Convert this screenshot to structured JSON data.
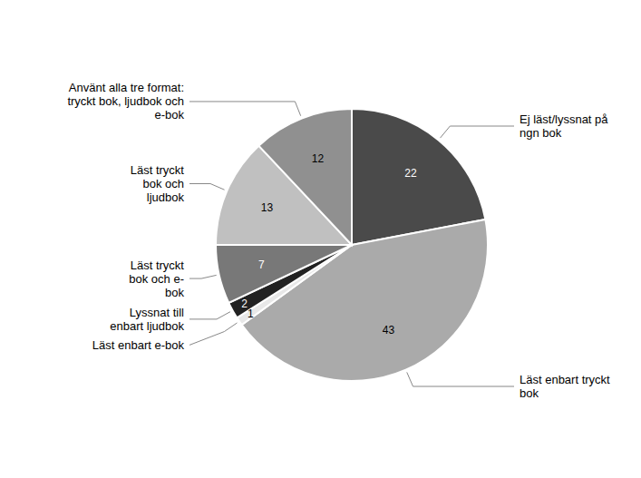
{
  "chart_data": {
    "type": "pie",
    "categories": [
      "Ej läst/lyssnat på\nngn bok",
      "Läst enbart tryckt\nbok",
      "Läst enbart e-bok",
      "Lyssnat till\nenbart ljudbok",
      "Läst tryckt\nbok och e-\nbok",
      "Läst tryckt\nbok och\nljudbok",
      "Använt alla tre format:\ntryckt bok, ljudbok och\ne-bok"
    ],
    "values": [
      22,
      43,
      1,
      2,
      7,
      13,
      12
    ],
    "colors": [
      "#4a4a4a",
      "#aaaaaa",
      "#e8e8e8",
      "#222222",
      "#787878",
      "#c0c0c0",
      "#909090"
    ],
    "data_labels": true
  }
}
